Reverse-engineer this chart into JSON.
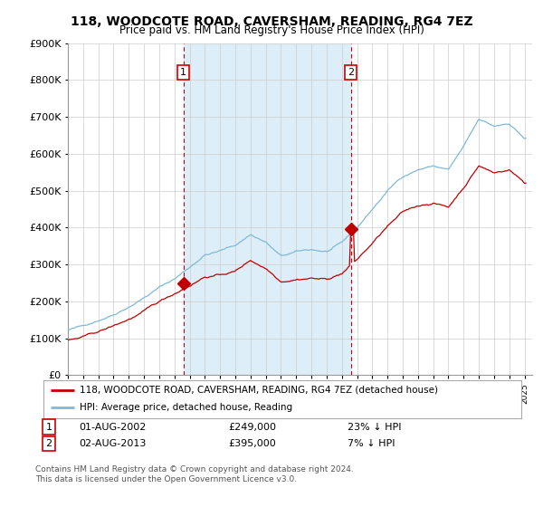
{
  "title": "118, WOODCOTE ROAD, CAVERSHAM, READING, RG4 7EZ",
  "subtitle": "Price paid vs. HM Land Registry's House Price Index (HPI)",
  "legend_line1": "118, WOODCOTE ROAD, CAVERSHAM, READING, RG4 7EZ (detached house)",
  "legend_line2": "HPI: Average price, detached house, Reading",
  "annotation1_date": "01-AUG-2002",
  "annotation1_price": "£249,000",
  "annotation1_pct": "23% ↓ HPI",
  "annotation2_date": "02-AUG-2013",
  "annotation2_price": "£395,000",
  "annotation2_pct": "7% ↓ HPI",
  "footer1": "Contains HM Land Registry data © Crown copyright and database right 2024.",
  "footer2": "This data is licensed under the Open Government Licence v3.0.",
  "sale1_year": 2002.583,
  "sale1_price": 249000,
  "sale2_year": 2013.583,
  "sale2_price": 395000,
  "hpi_color": "#7fb9d8",
  "sale_color": "#c00000",
  "vline_color": "#cc0000",
  "shade_color": "#ddeef8",
  "background_color": "#ffffff",
  "ylim": [
    0,
    900000
  ],
  "xlim_start": 1995.0,
  "xlim_end": 2025.5
}
